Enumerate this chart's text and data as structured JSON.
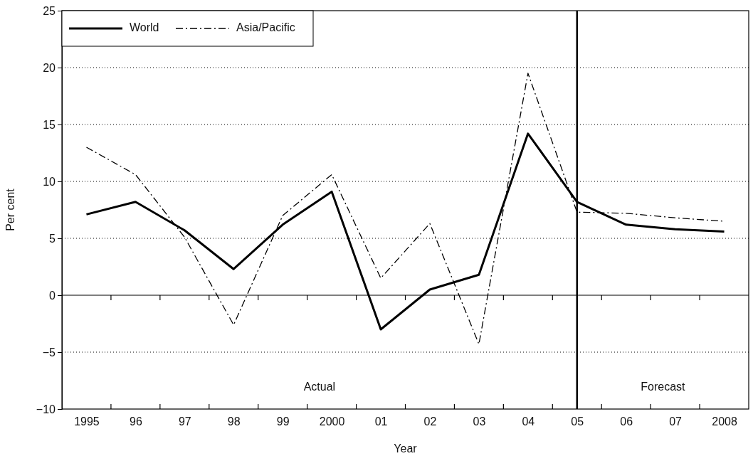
{
  "chart_data": {
    "type": "line",
    "xlabel": "Year",
    "ylabel": "Per cent",
    "categories": [
      "1995",
      "96",
      "97",
      "98",
      "99",
      "2000",
      "01",
      "02",
      "03",
      "04",
      "05",
      "06",
      "07",
      "2008"
    ],
    "series": [
      {
        "name": "World",
        "color": "#000000",
        "line_style": "solid",
        "values": [
          7.1,
          8.2,
          5.7,
          2.3,
          6.2,
          9.1,
          -3.0,
          0.5,
          1.8,
          14.2,
          8.2,
          6.2,
          5.8,
          5.6
        ]
      },
      {
        "name": "Asia/Pacific",
        "color": "#000000",
        "line_style": "dashdot",
        "values": [
          13.0,
          10.6,
          5.1,
          -2.6,
          7.0,
          10.6,
          1.5,
          6.3,
          -4.3,
          19.5,
          7.3,
          7.2,
          6.8,
          6.5
        ]
      }
    ],
    "ylim": [
      -10,
      25
    ],
    "yticks": [
      {
        "value": -10,
        "label": "−10"
      },
      {
        "value": -5,
        "label": "−5"
      },
      0,
      5,
      10,
      15,
      20,
      25
    ],
    "grid": "y",
    "legend": "top left",
    "marker": "none",
    "ref_lines": [
      {
        "axis": "x",
        "value": "05",
        "color": "#000000",
        "line_style": "solid"
      }
    ],
    "annotations": [
      "Actual",
      "Forecast"
    ]
  }
}
